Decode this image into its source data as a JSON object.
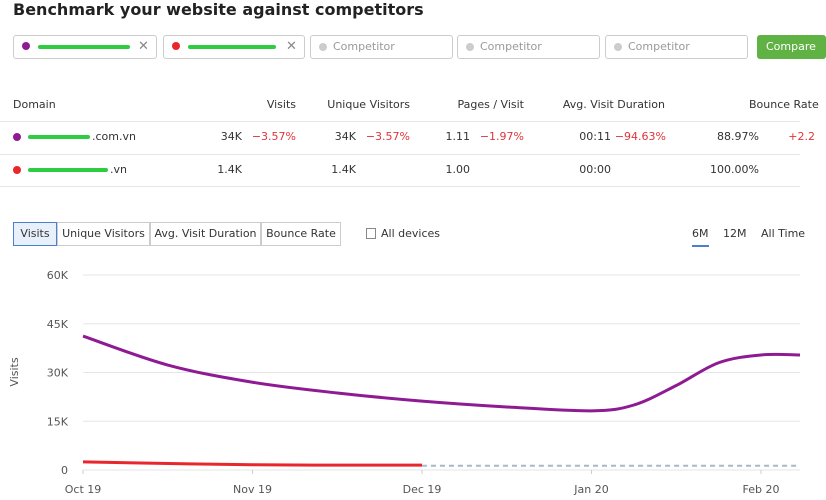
{
  "header": {
    "title": "Benchmark your website against competitors"
  },
  "inputs": {
    "placeholders": [
      "Competitor",
      "Competitor",
      "Competitor"
    ],
    "button": "Compare"
  },
  "table": {
    "headers": [
      "Domain",
      "Visits",
      "Unique Visitors",
      "Pages / Visit",
      "Avg. Visit Duration",
      "Bounce Rate"
    ],
    "rows": [
      {
        "domain": ".com.vn",
        "color": "#8e1b93",
        "cells": [
          {
            "value": "34K",
            "change": "−3.57%"
          },
          {
            "value": "34K",
            "change": "−3.57%"
          },
          {
            "value": "1.11",
            "change": "−1.97%"
          },
          {
            "value": "00:11",
            "change": "−94.63%"
          },
          {
            "value": "88.97%",
            "change": "+2.2"
          }
        ]
      },
      {
        "domain": ".vn",
        "color": "#e8262b",
        "cells": [
          {
            "value": "1.4K"
          },
          {
            "value": "1.4K"
          },
          {
            "value": "1.00"
          },
          {
            "value": "00:00"
          },
          {
            "value": "100.00%"
          }
        ]
      }
    ]
  },
  "tabs": {
    "metrics": [
      "Visits",
      "Unique Visitors",
      "Avg. Visit Duration",
      "Bounce Rate"
    ],
    "active": 0,
    "devices": "All devices",
    "periods": [
      "6M",
      "12M",
      "All Time"
    ],
    "active_period": 0
  },
  "chart_data": {
    "type": "line",
    "y_label": "Visits",
    "xlim": [
      0,
      4.23
    ],
    "xticks": [
      {
        "value": 0,
        "label": "Oct 19"
      },
      {
        "value": 1,
        "label": "Nov 19"
      },
      {
        "value": 2,
        "label": "Dec 19"
      },
      {
        "value": 3,
        "label": "Jan 20"
      },
      {
        "value": 4,
        "label": "Feb 20"
      }
    ],
    "ylim": [
      0,
      60000
    ],
    "yticks": [
      0,
      {
        "value": 15000,
        "label": "15K"
      },
      {
        "value": 30000,
        "label": "30K"
      },
      {
        "value": 45000,
        "label": "45K"
      },
      {
        "value": 60000,
        "label": "60K"
      }
    ],
    "grid": true,
    "series": [
      {
        "color": "#8e1b93",
        "x": [
          0,
          0.5,
          1,
          1.5,
          2,
          2.5,
          3,
          3.25,
          3.5,
          3.75,
          4,
          4.23
        ],
        "values": [
          41200,
          32300,
          27000,
          23700,
          21200,
          19400,
          18200,
          20000,
          26000,
          33000,
          35400,
          35400
        ]
      },
      {
        "color": "#e8262b",
        "x": [
          0,
          1,
          2
        ],
        "values": [
          2500,
          1600,
          1500
        ]
      },
      {
        "color": "#a9b7c6",
        "dashed": true,
        "x": [
          2,
          4.23
        ],
        "values": [
          1300,
          1300
        ]
      }
    ]
  }
}
